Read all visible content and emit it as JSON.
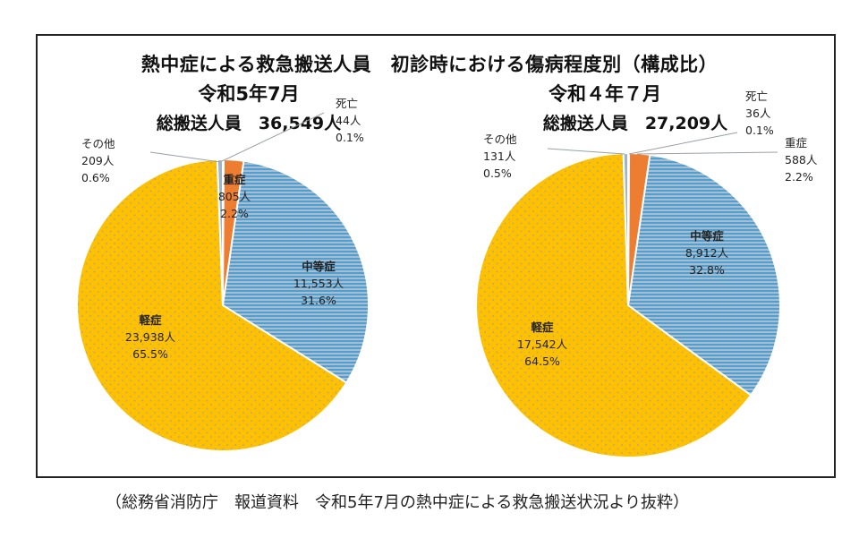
{
  "figure": {
    "title": "熱中症による救急搬送人員　初診時における傷病程度別（構成比）",
    "source_note": "（総務省消防庁　報道資料　令和5年7月の熱中症による救急搬送状況より抜粋）"
  },
  "colors": {
    "fatal": "#2e75b6",
    "severe": "#ed7d31",
    "moderate_fill": "#a9bdd0",
    "moderate_stripe": "#4fa0d0",
    "mild_fill": "#ffc000",
    "mild_dot": "#9aa7b0",
    "other": "#9fb4c8"
  },
  "chart_data": [
    {
      "type": "pie",
      "title": "令和5年7月",
      "subtitle": "総搬送人員　36,549人",
      "slices": [
        {
          "name": "死亡",
          "count": "44人",
          "percent_label": "0.1%",
          "value": 0.1
        },
        {
          "name": "重症",
          "count": "805人",
          "percent_label": "2.2%",
          "value": 2.2
        },
        {
          "name": "中等症",
          "count": "11,553人",
          "percent_label": "31.6%",
          "value": 31.6
        },
        {
          "name": "軽症",
          "count": "23,938人",
          "percent_label": "65.5%",
          "value": 65.5
        },
        {
          "name": "その他",
          "count": "209人",
          "percent_label": "0.6%",
          "value": 0.6
        }
      ]
    },
    {
      "type": "pie",
      "title": "令和４年７月",
      "subtitle": "総搬送人員　27,209人",
      "slices": [
        {
          "name": "死亡",
          "count": "36人",
          "percent_label": "0.1%",
          "value": 0.1
        },
        {
          "name": "重症",
          "count": "588人",
          "percent_label": "2.2%",
          "value": 2.2
        },
        {
          "name": "中等症",
          "count": "8,912人",
          "percent_label": "32.8%",
          "value": 32.8
        },
        {
          "name": "軽症",
          "count": "17,542人",
          "percent_label": "64.5%",
          "value": 64.5
        },
        {
          "name": "その他",
          "count": "131人",
          "percent_label": "0.5%",
          "value": 0.5
        }
      ]
    }
  ]
}
